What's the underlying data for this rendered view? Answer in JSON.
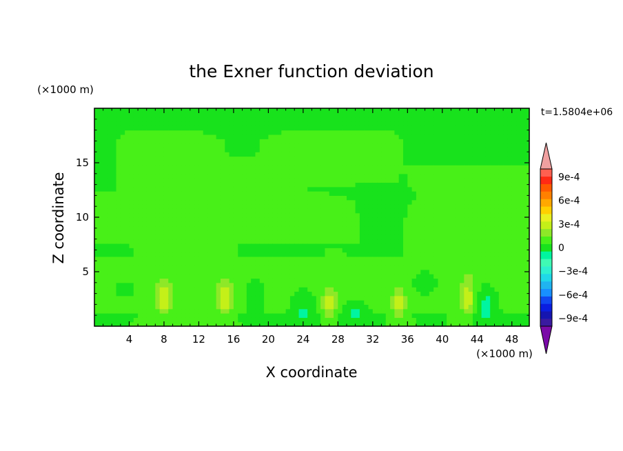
{
  "chart_data": {
    "type": "heatmap",
    "title": "the Exner function deviation",
    "xlabel": "X coordinate",
    "ylabel": "Z coordinate",
    "x_unit": "(×1000 m)",
    "y_unit": "(×1000 m)",
    "time_label": "t=1.5804e+06",
    "xlim": [
      0,
      50
    ],
    "ylim": [
      0,
      20
    ],
    "x_ticks": [
      4,
      8,
      12,
      16,
      20,
      24,
      28,
      32,
      36,
      40,
      44,
      48
    ],
    "y_ticks": [
      5,
      10,
      15
    ],
    "colorbar": {
      "levels": [
        -0.0011,
        -0.001,
        -0.0009,
        -0.0008,
        -0.0007,
        -0.0006,
        -0.0005,
        -0.0004,
        -0.0003,
        -0.0002,
        -0.0001,
        0,
        0.0001,
        0.0002,
        0.0003,
        0.0004,
        0.0005,
        0.0006,
        0.0007,
        0.0008,
        0.0009,
        0.001,
        0.0011
      ],
      "labels": [
        {
          "value": 0.0009,
          "text": "9e-4"
        },
        {
          "value": 0.0006,
          "text": "6e-4"
        },
        {
          "value": 0.0003,
          "text": "3e-4"
        },
        {
          "value": 0,
          "text": "0"
        },
        {
          "value": -0.0003,
          "text": "−3e-4"
        },
        {
          "value": -0.0006,
          "text": "−6e-4"
        },
        {
          "value": -0.0009,
          "text": "−9e-4"
        }
      ],
      "colors": [
        "#7a0aa8",
        "#3a1aa0",
        "#1515b0",
        "#0a1ee0",
        "#1048f0",
        "#1890ff",
        "#20b4f0",
        "#20d8e8",
        "#2ef0d0",
        "#40fab4",
        "#00f5a0",
        "#18e21c",
        "#48f018",
        "#8ee828",
        "#c4f018",
        "#eaf020",
        "#ffd000",
        "#ffa800",
        "#ff8000",
        "#ff5a00",
        "#ff2a14",
        "#ff6050",
        "#f0a0a0"
      ]
    },
    "field": {
      "base": 5e-05,
      "features": [
        {
          "kind": "band",
          "x0": 0,
          "x1": 50,
          "z0": 17.5,
          "z1": 20,
          "value": -3e-05
        },
        {
          "kind": "band",
          "x0": 3,
          "x1": 35,
          "z0": 13,
          "z1": 19.5,
          "value": 0.00013
        },
        {
          "kind": "band",
          "x0": 0,
          "x1": 30,
          "z0": 8,
          "z1": 12,
          "value": 0.00012
        },
        {
          "kind": "band",
          "x0": 36,
          "x1": 50,
          "z0": 7,
          "z1": 14.5,
          "value": 0.00013
        },
        {
          "kind": "band",
          "x0": 0,
          "x1": 50,
          "z0": 1.5,
          "z1": 6,
          "value": 0.00011
        },
        {
          "kind": "blob",
          "x": 17,
          "z": 16.5,
          "rx": 4,
          "rz": 2,
          "value": -0.0001
        },
        {
          "kind": "blob",
          "x": 34,
          "z": 12,
          "rx": 6,
          "rz": 1.5,
          "value": -0.0001
        },
        {
          "kind": "blob",
          "x": 38,
          "z": 4,
          "rx": 2,
          "rz": 1.5,
          "value": -0.0001
        },
        {
          "kind": "blob",
          "x": 8,
          "z": 2.5,
          "rx": 1,
          "rz": 1.8,
          "value": 0.00022
        },
        {
          "kind": "blob",
          "x": 15,
          "z": 2.5,
          "rx": 0.9,
          "rz": 1.8,
          "value": 0.00022
        },
        {
          "kind": "blob",
          "x": 27,
          "z": 2,
          "rx": 0.8,
          "rz": 1.6,
          "value": 0.00022
        },
        {
          "kind": "blob",
          "x": 35,
          "z": 2,
          "rx": 0.8,
          "rz": 1.5,
          "value": 0.00022
        },
        {
          "kind": "blob",
          "x": 43,
          "z": 2.5,
          "rx": 1,
          "rz": 2,
          "value": 0.00022
        },
        {
          "kind": "blob",
          "x": 18.5,
          "z": 3,
          "rx": 1.3,
          "rz": 1.5,
          "value": -0.00015
        },
        {
          "kind": "blob",
          "x": 24,
          "z": 2,
          "rx": 1.5,
          "rz": 1.8,
          "value": -0.00015
        },
        {
          "kind": "blob",
          "x": 30,
          "z": 1.5,
          "rx": 1.5,
          "rz": 1.2,
          "value": -0.00015
        },
        {
          "kind": "blob",
          "x": 45,
          "z": 2,
          "rx": 1.5,
          "rz": 2,
          "value": -0.00018
        },
        {
          "kind": "blob",
          "x": 3.5,
          "z": 3.5,
          "rx": 1.5,
          "rz": 0.8,
          "value": -0.00012
        }
      ]
    }
  }
}
